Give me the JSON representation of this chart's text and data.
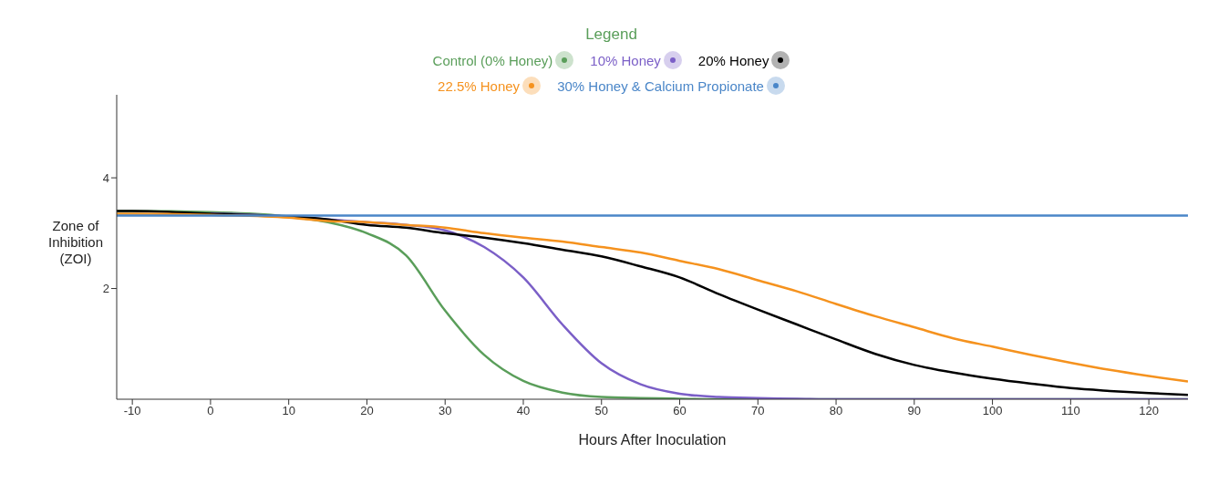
{
  "chart_data": {
    "type": "line",
    "xlabel": "Hours After Inoculation",
    "ylabel": "Zone of Inhibition (ZOI)",
    "legend_title": "Legend",
    "legend": "top",
    "x": [
      -12,
      -10,
      0,
      10,
      15,
      20,
      25,
      30,
      35,
      40,
      45,
      50,
      55,
      60,
      65,
      70,
      75,
      80,
      85,
      90,
      95,
      100,
      105,
      110,
      115,
      120,
      125
    ],
    "series": [
      {
        "name": "Control (0% Honey)",
        "color": "#5a9e5a",
        "values": [
          3.4,
          3.4,
          3.38,
          3.3,
          3.2,
          3.0,
          2.6,
          1.6,
          0.8,
          0.33,
          0.12,
          0.04,
          0.02,
          0.01,
          0,
          0,
          0,
          0,
          0,
          0,
          0,
          0,
          0,
          0,
          0,
          0,
          0
        ]
      },
      {
        "name": "10% Honey",
        "color": "#7b5fc7",
        "values": [
          null,
          null,
          3.36,
          3.3,
          3.25,
          3.2,
          3.15,
          3.05,
          2.75,
          2.2,
          1.35,
          0.65,
          0.27,
          0.1,
          0.04,
          0.02,
          0.01,
          0,
          0,
          0,
          0,
          0,
          0,
          0,
          0,
          0,
          0
        ]
      },
      {
        "name": "20% Honey",
        "color": "#000000",
        "values": [
          3.4,
          3.4,
          3.35,
          3.3,
          3.25,
          3.15,
          3.1,
          3.0,
          2.92,
          2.82,
          2.7,
          2.58,
          2.4,
          2.2,
          1.9,
          1.62,
          1.35,
          1.08,
          0.82,
          0.62,
          0.48,
          0.37,
          0.28,
          0.2,
          0.15,
          0.11,
          0.08
        ]
      },
      {
        "name": "22.5% Honey",
        "color": "#f5921e",
        "values": [
          3.35,
          3.35,
          3.33,
          3.28,
          3.22,
          3.2,
          3.15,
          3.1,
          3.0,
          2.92,
          2.85,
          2.75,
          2.65,
          2.5,
          2.35,
          2.15,
          1.95,
          1.72,
          1.5,
          1.3,
          1.1,
          0.95,
          0.8,
          0.66,
          0.53,
          0.42,
          0.32
        ]
      },
      {
        "name": "30% Honey & Calcium Propionate",
        "color": "#4a86c8",
        "values": [
          3.32,
          3.32,
          3.32,
          3.32,
          3.32,
          3.32,
          3.32,
          3.32,
          3.32,
          3.32,
          3.32,
          3.32,
          3.32,
          3.32,
          3.32,
          3.32,
          3.32,
          3.32,
          3.32,
          3.32,
          3.32,
          3.32,
          3.32,
          3.32,
          3.32,
          3.32,
          3.32
        ]
      }
    ],
    "xlim": [
      -12,
      125
    ],
    "ylim": [
      0,
      5.5
    ],
    "xticks": [
      -10,
      0,
      10,
      20,
      30,
      40,
      50,
      60,
      70,
      80,
      90,
      100,
      110,
      120
    ],
    "yticks": [
      2,
      4
    ]
  }
}
